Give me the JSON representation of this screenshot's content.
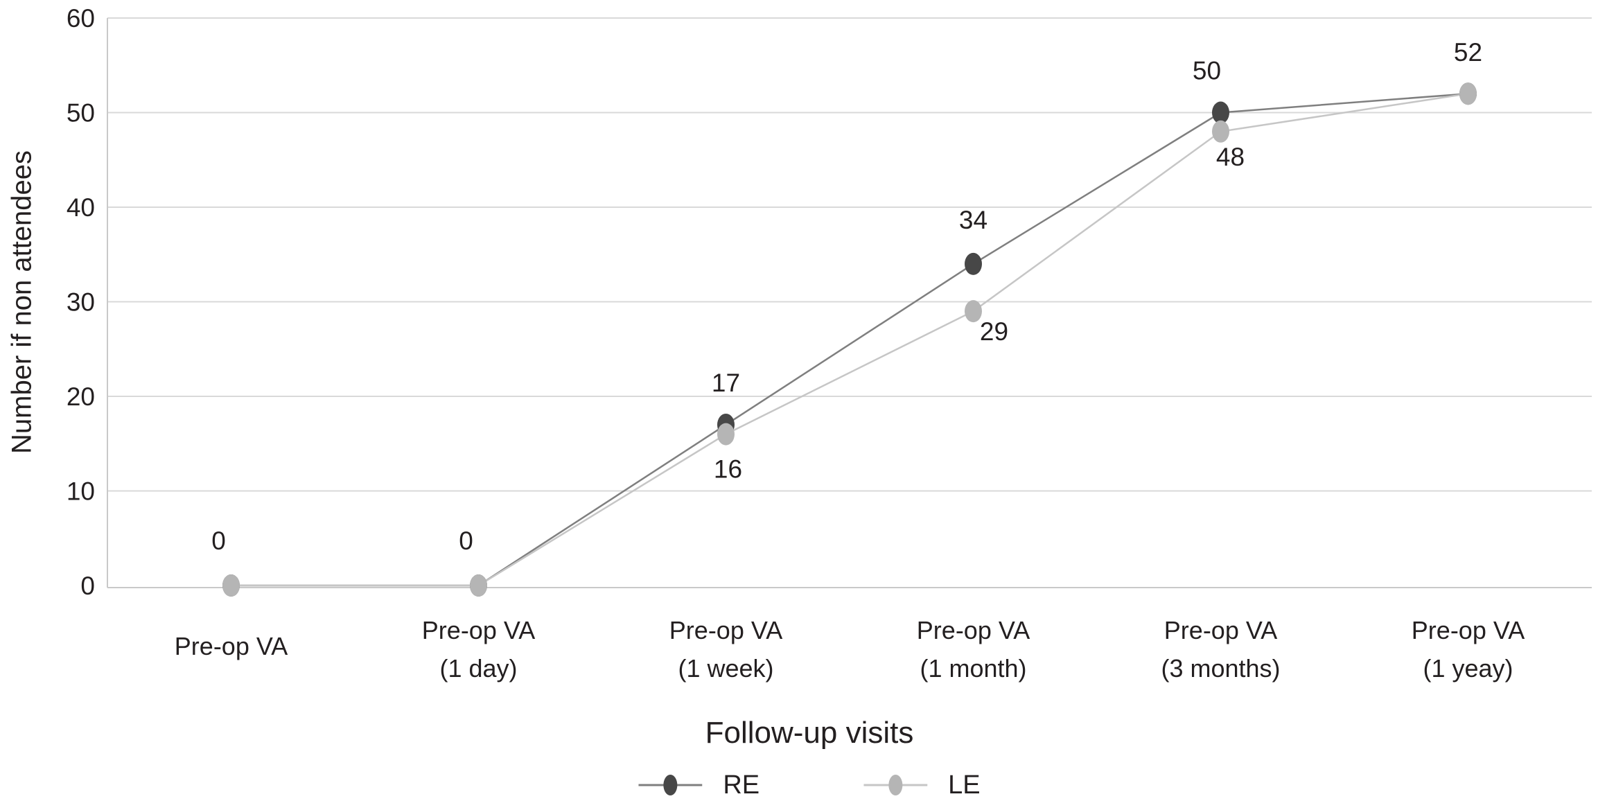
{
  "figure": {
    "background": "#ffffff",
    "text_color": "#231f20"
  },
  "chart_data": {
    "type": "line",
    "title": "",
    "xlabel": "Follow-up visits",
    "ylabel": "Number if non attendees",
    "categories": [
      "Pre-op VA",
      "Pre-op VA (1 day)",
      "Pre-op VA (1 week)",
      "Pre-op VA (1 month)",
      "Pre-op VA (3 months)",
      "Pre-op VA (1 yeay)"
    ],
    "category_display_lines": [
      [
        "Pre-op VA"
      ],
      [
        "Pre-op VA",
        "(1 day)"
      ],
      [
        "Pre-op VA",
        "(1 week)"
      ],
      [
        "Pre-op VA",
        "(1 month)"
      ],
      [
        "Pre-op VA",
        "(3 months)"
      ],
      [
        "Pre-op VA",
        "(1 yeay)"
      ]
    ],
    "series": [
      {
        "name": "RE",
        "values": [
          0,
          0,
          17,
          34,
          50,
          52
        ],
        "line_color": "#7f7f7f",
        "marker_color": "#474747"
      },
      {
        "name": "LE",
        "values": [
          0,
          0,
          16,
          29,
          48,
          52
        ],
        "line_color": "#c6c6c6",
        "marker_color": "#b5b5b5"
      }
    ],
    "visible_point_labels": [
      0,
      0,
      17,
      16,
      34,
      29,
      50,
      48,
      52
    ],
    "ylim": [
      0,
      60
    ],
    "yticks": [
      0,
      10,
      20,
      30,
      40,
      50,
      60
    ],
    "grid": true,
    "gridline_color": "#d9d9d9",
    "axis_color": "#c9c9c9",
    "legend_position": "bottom"
  }
}
